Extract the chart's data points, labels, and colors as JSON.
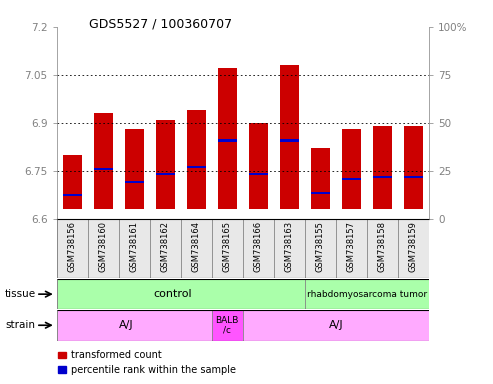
{
  "title": "GDS5527 / 100360707",
  "samples": [
    "GSM738156",
    "GSM738160",
    "GSM738161",
    "GSM738162",
    "GSM738164",
    "GSM738165",
    "GSM738166",
    "GSM738163",
    "GSM738155",
    "GSM738157",
    "GSM738158",
    "GSM738159"
  ],
  "bar_bottoms": [
    6.63,
    6.63,
    6.63,
    6.63,
    6.63,
    6.63,
    6.63,
    6.63,
    6.63,
    6.63,
    6.63,
    6.63
  ],
  "bar_tops": [
    6.8,
    6.93,
    6.88,
    6.91,
    6.94,
    7.07,
    6.9,
    7.08,
    6.82,
    6.88,
    6.89,
    6.89
  ],
  "blue_marks": [
    6.675,
    6.755,
    6.715,
    6.74,
    6.762,
    6.845,
    6.74,
    6.845,
    6.68,
    6.725,
    6.73,
    6.73
  ],
  "ylim_left": [
    6.6,
    7.2
  ],
  "yticks_left": [
    6.6,
    6.75,
    6.9,
    7.05,
    7.2
  ],
  "yticks_right": [
    0,
    25,
    50,
    75,
    100
  ],
  "bar_color": "#cc0000",
  "blue_color": "#0000cc",
  "tissue_color_control": "#aaffaa",
  "tissue_color_tumor": "#aaffaa",
  "strain_color_aj": "#ffaaff",
  "strain_color_balb": "#ff55ff",
  "ylabel_left_color": "#cc0000",
  "ylabel_right_color": "#0000cc",
  "legend_items": [
    {
      "label": "transformed count",
      "color": "#cc0000"
    },
    {
      "label": "percentile rank within the sample",
      "color": "#0000cc"
    }
  ]
}
